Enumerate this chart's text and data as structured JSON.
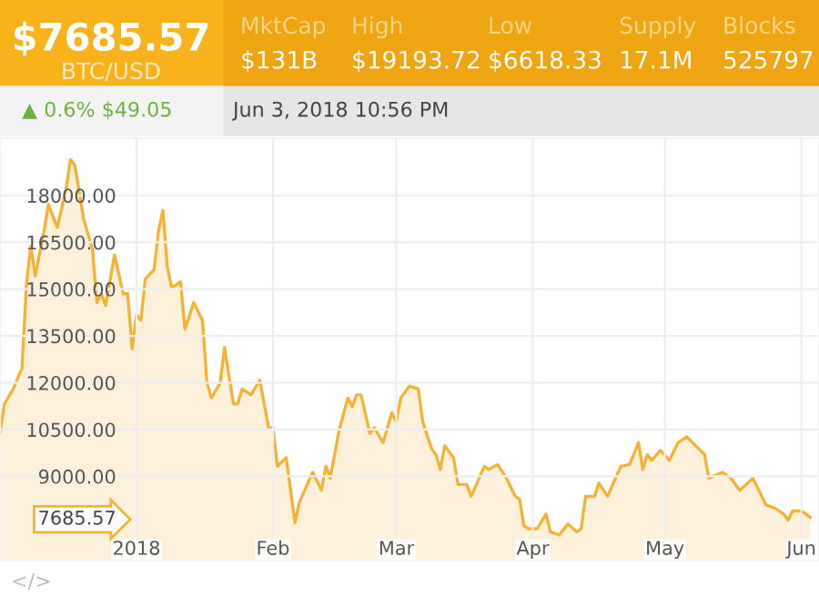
{
  "chart_data": {
    "type": "area",
    "x": [
      "2017-12-01",
      "2017-12-02",
      "2017-12-04",
      "2017-12-06",
      "2017-12-07",
      "2017-12-08",
      "2017-12-09",
      "2017-12-11",
      "2017-12-12",
      "2017-12-14",
      "2017-12-16",
      "2017-12-17",
      "2017-12-18",
      "2017-12-20",
      "2017-12-22",
      "2017-12-23",
      "2017-12-24",
      "2017-12-25",
      "2017-12-27",
      "2017-12-29",
      "2017-12-30",
      "2017-12-31",
      "2018-01-01",
      "2018-01-02",
      "2018-01-03",
      "2018-01-05",
      "2018-01-06",
      "2018-01-07",
      "2018-01-08",
      "2018-01-09",
      "2018-01-11",
      "2018-01-12",
      "2018-01-14",
      "2018-01-16",
      "2018-01-17",
      "2018-01-18",
      "2018-01-20",
      "2018-01-21",
      "2018-01-23",
      "2018-01-24",
      "2018-01-25",
      "2018-01-27",
      "2018-01-29",
      "2018-01-31",
      "2018-02-01",
      "2018-02-02",
      "2018-02-04",
      "2018-02-06",
      "2018-02-07",
      "2018-02-10",
      "2018-02-12",
      "2018-02-13",
      "2018-02-14",
      "2018-02-16",
      "2018-02-18",
      "2018-02-19",
      "2018-02-20",
      "2018-02-21",
      "2018-02-23",
      "2018-02-24",
      "2018-02-26",
      "2018-02-28",
      "2018-03-01",
      "2018-03-02",
      "2018-03-04",
      "2018-03-06",
      "2018-03-07",
      "2018-03-09",
      "2018-03-10",
      "2018-03-11",
      "2018-03-12",
      "2018-03-14",
      "2018-03-15",
      "2018-03-17",
      "2018-03-18",
      "2018-03-21",
      "2018-03-22",
      "2018-03-24",
      "2018-03-26",
      "2018-03-28",
      "2018-03-29",
      "2018-03-30",
      "2018-03-31",
      "2018-04-02",
      "2018-04-04",
      "2018-04-05",
      "2018-04-07",
      "2018-04-09",
      "2018-04-11",
      "2018-04-12",
      "2018-04-13",
      "2018-04-15",
      "2018-04-16",
      "2018-04-18",
      "2018-04-19",
      "2018-04-21",
      "2018-04-23",
      "2018-04-25",
      "2018-04-26",
      "2018-04-27",
      "2018-04-28",
      "2018-04-30",
      "2018-05-02",
      "2018-05-04",
      "2018-05-06",
      "2018-05-08",
      "2018-05-10",
      "2018-05-11",
      "2018-05-14",
      "2018-05-16",
      "2018-05-18",
      "2018-05-21",
      "2018-05-22",
      "2018-05-24",
      "2018-05-26",
      "2018-05-28",
      "2018-05-29",
      "2018-05-30",
      "2018-06-01",
      "2018-06-03"
    ],
    "series": [
      {
        "color": "#f5b335",
        "values": [
          10370,
          11320,
          11800,
          12470,
          15140,
          16380,
          15420,
          16860,
          17710,
          16970,
          18190,
          19150,
          18960,
          17240,
          16280,
          14570,
          14850,
          14470,
          16090,
          14850,
          14850,
          13080,
          14180,
          14000,
          15330,
          15620,
          16860,
          17520,
          15710,
          15040,
          15230,
          13710,
          14570,
          13990,
          11990,
          11510,
          11990,
          13130,
          11320,
          11320,
          11800,
          11610,
          12080,
          10560,
          10560,
          9320,
          9600,
          7510,
          8170,
          9130,
          8550,
          9320,
          8940,
          10460,
          11510,
          11230,
          11610,
          11610,
          10370,
          10560,
          10080,
          11040,
          10750,
          11510,
          11890,
          11800,
          10750,
          9890,
          9700,
          9220,
          9980,
          9600,
          8740,
          8740,
          8360,
          9320,
          9220,
          9380,
          8940,
          8360,
          8270,
          7410,
          7320,
          7320,
          7790,
          7220,
          7120,
          7470,
          7220,
          7320,
          8360,
          8360,
          8780,
          8360,
          8690,
          9320,
          9380,
          10080,
          9220,
          9700,
          9510,
          9830,
          9510,
          10080,
          10270,
          9980,
          9700,
          8940,
          9130,
          8940,
          8550,
          8940,
          8650,
          8080,
          7980,
          7790,
          7600,
          7890,
          7890,
          7685.57
        ]
      }
    ],
    "xlim": [
      "2017-12-01",
      "2018-06-05"
    ],
    "xticks": [
      {
        "value": "2018-01-01",
        "label": "2018"
      },
      {
        "value": "2018-02-01",
        "label": "Feb"
      },
      {
        "value": "2018-03-01",
        "label": "Mar"
      },
      {
        "value": "2018-04-01",
        "label": "Apr"
      },
      {
        "value": "2018-05-01",
        "label": "May"
      },
      {
        "value": "2018-06-01",
        "label": "Jun"
      }
    ],
    "ylim": [
      6300,
      19830
    ],
    "yticks": [
      {
        "value": 7685.57,
        "label": "7685.57"
      },
      {
        "value": 9000,
        "label": "9000.00"
      },
      {
        "value": 10500,
        "label": "10500.00"
      },
      {
        "value": 12000,
        "label": "12000.00"
      },
      {
        "value": 13500,
        "label": "13500.00"
      },
      {
        "value": 15000,
        "label": "15000.00"
      },
      {
        "value": 16500,
        "label": "16500.00"
      },
      {
        "value": 18000,
        "label": "18000.00"
      }
    ],
    "grid": true,
    "annotations": [
      "$7685.57",
      "BTC/USD",
      "MktCap",
      "$131B",
      "High",
      "$19193.72",
      "Low",
      "$6618.33",
      "Supply",
      "17.1M",
      "Blocks",
      "525797",
      "▲ 0.6% $49.05",
      "Jun 3, 2018 10:56 PM",
      "</>"
    ]
  }
}
